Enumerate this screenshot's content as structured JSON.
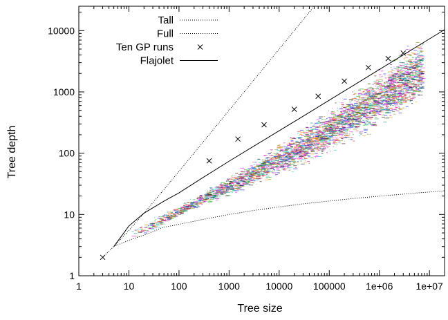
{
  "chart_data": {
    "type": "scatter",
    "title": "",
    "xlabel": "Tree size",
    "ylabel": "Tree depth",
    "xscale": "log",
    "yscale": "log",
    "xlim": [
      1,
      20000000
    ],
    "ylim": [
      1,
      25000
    ],
    "grid": false,
    "legend_position": "top-left",
    "x_ticks": [
      {
        "value": 1,
        "label": "1"
      },
      {
        "value": 10,
        "label": "10"
      },
      {
        "value": 100,
        "label": "100"
      },
      {
        "value": 1000,
        "label": "1000"
      },
      {
        "value": 10000,
        "label": "10000"
      },
      {
        "value": 100000,
        "label": "100000"
      },
      {
        "value": 1000000,
        "label": "1e+06"
      },
      {
        "value": 10000000,
        "label": "1e+07"
      }
    ],
    "y_ticks": [
      {
        "value": 1,
        "label": "1"
      },
      {
        "value": 10,
        "label": "10"
      },
      {
        "value": 100,
        "label": "100"
      },
      {
        "value": 1000,
        "label": "1000"
      },
      {
        "value": 10000,
        "label": "10000"
      }
    ],
    "series": [
      {
        "name": "Tall",
        "style": "dotted",
        "color": "#000000",
        "x": [
          3,
          5,
          10,
          20,
          50,
          100,
          300,
          1000,
          3000,
          10000,
          30000,
          60000
        ],
        "y": [
          2,
          3,
          5.5,
          10.5,
          25.5,
          50.5,
          150.5,
          500.5,
          1500.5,
          5000.5,
          15000.5,
          30000.5
        ]
      },
      {
        "name": "Full",
        "style": "dotted",
        "color": "#000000",
        "x": [
          5,
          10,
          20,
          50,
          100,
          300,
          1000,
          3000,
          10000,
          30000,
          100000,
          300000,
          1000000,
          3000000,
          10000000,
          20000000
        ],
        "y": [
          3,
          3.8,
          4.6,
          6.2,
          6.9,
          8.3,
          10.0,
          11.6,
          13.3,
          14.9,
          16.6,
          18.2,
          19.9,
          21.5,
          23.3,
          24.3
        ]
      },
      {
        "name": "Ten GP runs",
        "style": "points",
        "color": "#000000",
        "colors": [
          "#ff0000",
          "#00aa00",
          "#0000ff",
          "#ff00ff",
          "#00cccc",
          "#888800",
          "#000000",
          "#ff8800",
          "#008888",
          "#aa00aa"
        ],
        "x": [
          3,
          400,
          1500,
          5000,
          20000,
          60000,
          200000,
          600000,
          1500000,
          3000000
        ],
        "y": [
          2,
          75,
          170,
          290,
          520,
          850,
          1500,
          2500,
          3500,
          4300
        ]
      },
      {
        "name": "Flajolet",
        "style": "solid",
        "color": "#000000",
        "x": [
          5,
          10,
          20,
          50,
          100,
          300,
          1000,
          3000,
          10000,
          30000,
          100000,
          300000,
          1000000,
          3000000,
          10000000,
          20000000
        ],
        "y": [
          3,
          6.5,
          10.5,
          16.5,
          22.5,
          40,
          74,
          128,
          232,
          401,
          733,
          1269,
          2318,
          4014,
          7328,
          10364
        ]
      }
    ]
  }
}
